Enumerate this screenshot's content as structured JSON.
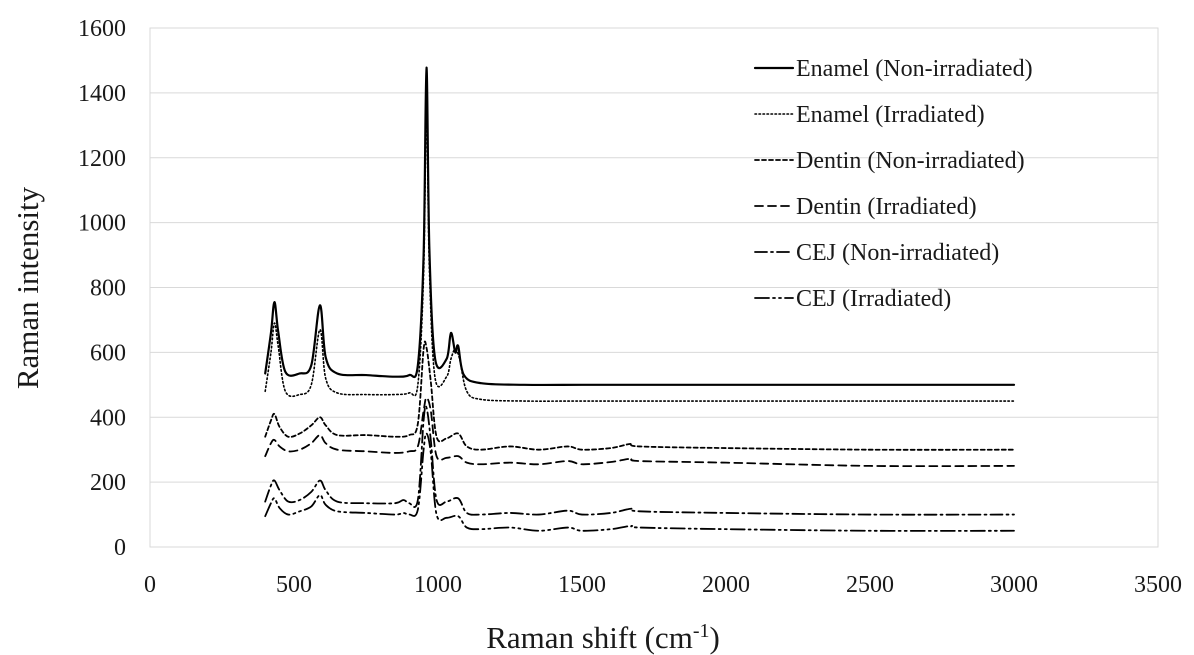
{
  "chart_data": {
    "type": "line",
    "title": "",
    "xlabel": "Raman shift (cm",
    "xlabel_sup": "-1",
    "xlabel_suffix": ")",
    "ylabel": "Raman intensity",
    "xlim": [
      0,
      3500
    ],
    "ylim": [
      0,
      1600
    ],
    "xticks": [
      0,
      500,
      1000,
      1500,
      2000,
      2500,
      3000,
      3500
    ],
    "yticks": [
      0,
      200,
      400,
      600,
      800,
      1000,
      1200,
      1400,
      1600
    ],
    "grid": "horizontal",
    "legend_position": "top-right",
    "series": [
      {
        "name": "Enamel (Non-irradiated)",
        "line_style": "solid",
        "color": "#000000",
        "points": [
          [
            400,
            535
          ],
          [
            420,
            660
          ],
          [
            432,
            755
          ],
          [
            445,
            665
          ],
          [
            470,
            540
          ],
          [
            520,
            535
          ],
          [
            560,
            560
          ],
          [
            590,
            745
          ],
          [
            610,
            585
          ],
          [
            650,
            535
          ],
          [
            750,
            530
          ],
          [
            850,
            525
          ],
          [
            900,
            530
          ],
          [
            930,
            560
          ],
          [
            950,
            900
          ],
          [
            960,
            1478
          ],
          [
            970,
            920
          ],
          [
            990,
            580
          ],
          [
            1030,
            580
          ],
          [
            1045,
            660
          ],
          [
            1060,
            600
          ],
          [
            1070,
            620
          ],
          [
            1090,
            530
          ],
          [
            1150,
            505
          ],
          [
            1300,
            500
          ],
          [
            1500,
            500
          ],
          [
            1700,
            500
          ],
          [
            2000,
            500
          ],
          [
            2500,
            500
          ],
          [
            3000,
            500
          ]
        ]
      },
      {
        "name": "Enamel (Irradiated)",
        "line_style": "dotted",
        "color": "#000000",
        "points": [
          [
            400,
            480
          ],
          [
            420,
            600
          ],
          [
            432,
            690
          ],
          [
            445,
            620
          ],
          [
            470,
            480
          ],
          [
            520,
            470
          ],
          [
            560,
            500
          ],
          [
            590,
            670
          ],
          [
            610,
            520
          ],
          [
            650,
            475
          ],
          [
            750,
            470
          ],
          [
            850,
            470
          ],
          [
            900,
            475
          ],
          [
            930,
            500
          ],
          [
            950,
            840
          ],
          [
            960,
            1355
          ],
          [
            970,
            860
          ],
          [
            990,
            520
          ],
          [
            1030,
            525
          ],
          [
            1045,
            580
          ],
          [
            1060,
            610
          ],
          [
            1075,
            580
          ],
          [
            1100,
            480
          ],
          [
            1150,
            455
          ],
          [
            1300,
            450
          ],
          [
            1500,
            450
          ],
          [
            1700,
            450
          ],
          [
            2000,
            450
          ],
          [
            2500,
            450
          ],
          [
            3000,
            450
          ]
        ]
      },
      {
        "name": "Dentin (Non-irradiated)",
        "line_style": "short-dash",
        "color": "#000000",
        "points": [
          [
            400,
            340
          ],
          [
            420,
            390
          ],
          [
            432,
            410
          ],
          [
            450,
            370
          ],
          [
            480,
            340
          ],
          [
            520,
            350
          ],
          [
            560,
            375
          ],
          [
            590,
            400
          ],
          [
            610,
            375
          ],
          [
            650,
            345
          ],
          [
            750,
            345
          ],
          [
            850,
            340
          ],
          [
            900,
            345
          ],
          [
            930,
            380
          ],
          [
            950,
            610
          ],
          [
            960,
            615
          ],
          [
            975,
            510
          ],
          [
            995,
            340
          ],
          [
            1030,
            335
          ],
          [
            1070,
            350
          ],
          [
            1100,
            310
          ],
          [
            1150,
            300
          ],
          [
            1250,
            310
          ],
          [
            1350,
            300
          ],
          [
            1450,
            310
          ],
          [
            1500,
            300
          ],
          [
            1600,
            305
          ],
          [
            1670,
            318
          ],
          [
            1700,
            310
          ],
          [
            2000,
            305
          ],
          [
            2500,
            300
          ],
          [
            3000,
            300
          ]
        ]
      },
      {
        "name": "Dentin (Irradiated)",
        "line_style": "dash",
        "color": "#000000",
        "points": [
          [
            400,
            280
          ],
          [
            420,
            320
          ],
          [
            432,
            330
          ],
          [
            450,
            310
          ],
          [
            480,
            295
          ],
          [
            520,
            300
          ],
          [
            560,
            320
          ],
          [
            590,
            345
          ],
          [
            610,
            320
          ],
          [
            650,
            300
          ],
          [
            750,
            295
          ],
          [
            850,
            290
          ],
          [
            900,
            295
          ],
          [
            930,
            310
          ],
          [
            950,
            420
          ],
          [
            960,
            460
          ],
          [
            975,
            420
          ],
          [
            995,
            280
          ],
          [
            1030,
            275
          ],
          [
            1070,
            280
          ],
          [
            1100,
            260
          ],
          [
            1150,
            255
          ],
          [
            1250,
            260
          ],
          [
            1350,
            255
          ],
          [
            1450,
            265
          ],
          [
            1500,
            255
          ],
          [
            1600,
            262
          ],
          [
            1670,
            272
          ],
          [
            1700,
            265
          ],
          [
            2000,
            260
          ],
          [
            2500,
            250
          ],
          [
            3000,
            250
          ]
        ]
      },
      {
        "name": "CEJ (Non-irradiated)",
        "line_style": "dash-dot",
        "color": "#000000",
        "points": [
          [
            400,
            140
          ],
          [
            420,
            190
          ],
          [
            432,
            205
          ],
          [
            450,
            175
          ],
          [
            480,
            140
          ],
          [
            520,
            145
          ],
          [
            560,
            170
          ],
          [
            590,
            205
          ],
          [
            610,
            175
          ],
          [
            650,
            140
          ],
          [
            750,
            135
          ],
          [
            850,
            135
          ],
          [
            880,
            145
          ],
          [
            900,
            135
          ],
          [
            930,
            145
          ],
          [
            950,
            390
          ],
          [
            960,
            430
          ],
          [
            975,
            330
          ],
          [
            995,
            145
          ],
          [
            1030,
            140
          ],
          [
            1070,
            150
          ],
          [
            1100,
            105
          ],
          [
            1150,
            100
          ],
          [
            1250,
            105
          ],
          [
            1350,
            100
          ],
          [
            1450,
            112
          ],
          [
            1500,
            100
          ],
          [
            1600,
            105
          ],
          [
            1670,
            118
          ],
          [
            1700,
            110
          ],
          [
            2000,
            105
          ],
          [
            2500,
            100
          ],
          [
            3000,
            100
          ]
        ]
      },
      {
        "name": "CEJ (Irradiated)",
        "line_style": "dash-dot-dot",
        "color": "#000000",
        "points": [
          [
            400,
            95
          ],
          [
            420,
            135
          ],
          [
            432,
            150
          ],
          [
            450,
            120
          ],
          [
            480,
            100
          ],
          [
            520,
            110
          ],
          [
            560,
            125
          ],
          [
            590,
            160
          ],
          [
            610,
            130
          ],
          [
            650,
            110
          ],
          [
            750,
            105
          ],
          [
            850,
            100
          ],
          [
            880,
            105
          ],
          [
            900,
            100
          ],
          [
            930,
            115
          ],
          [
            950,
            300
          ],
          [
            960,
            350
          ],
          [
            975,
            290
          ],
          [
            995,
            100
          ],
          [
            1030,
            90
          ],
          [
            1070,
            95
          ],
          [
            1100,
            60
          ],
          [
            1150,
            55
          ],
          [
            1250,
            60
          ],
          [
            1350,
            50
          ],
          [
            1450,
            60
          ],
          [
            1500,
            50
          ],
          [
            1600,
            55
          ],
          [
            1670,
            65
          ],
          [
            1700,
            60
          ],
          [
            2000,
            55
          ],
          [
            2500,
            50
          ],
          [
            3000,
            50
          ]
        ]
      }
    ]
  }
}
